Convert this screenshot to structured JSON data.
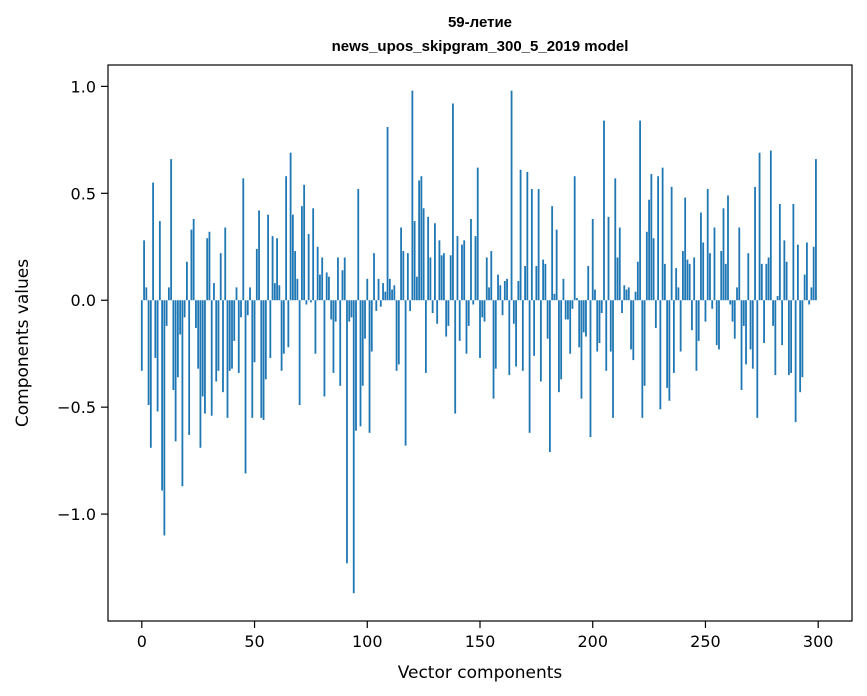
{
  "chart_data": {
    "type": "bar",
    "title": "59-летие",
    "subtitle": "news_upos_skipgram_300_5_2019 model",
    "xlabel": "Vector components",
    "ylabel": "Components values",
    "xlim": [
      -15,
      315
    ],
    "ylim": [
      -1.5,
      1.1
    ],
    "xticks": [
      0,
      50,
      100,
      150,
      200,
      250,
      300
    ],
    "yticks": [
      -1.0,
      -0.5,
      0.0,
      0.5,
      1.0
    ],
    "ytick_labels": [
      "−1.0",
      "−0.5",
      "0.0",
      "0.5",
      "1.0"
    ],
    "xtick_labels": [
      "0",
      "50",
      "100",
      "150",
      "200",
      "250",
      "300"
    ],
    "bar_color": "#1f77b4",
    "grid": false,
    "values": [
      -0.33,
      0.28,
      0.06,
      -0.49,
      -0.69,
      0.55,
      -0.27,
      -0.52,
      0.37,
      -0.89,
      -1.1,
      -0.12,
      0.06,
      0.66,
      -0.42,
      -0.66,
      -0.36,
      -0.16,
      -0.87,
      -0.08,
      0.18,
      -0.63,
      0.33,
      0.38,
      -0.13,
      -0.32,
      -0.69,
      -0.45,
      -0.53,
      0.29,
      0.32,
      -0.54,
      0.08,
      -0.38,
      -0.33,
      0.22,
      -0.43,
      0.34,
      -0.55,
      -0.33,
      -0.32,
      -0.19,
      0.06,
      -0.34,
      -0.08,
      0.57,
      -0.81,
      -0.07,
      0.06,
      -0.55,
      -0.29,
      0.24,
      0.42,
      -0.55,
      -0.56,
      -0.37,
      0.4,
      -0.27,
      0.3,
      0.08,
      0.29,
      0.07,
      -0.33,
      -0.25,
      0.58,
      -0.22,
      0.69,
      0.4,
      0.23,
      0.1,
      -0.49,
      0.44,
      0.54,
      -0.02,
      0.31,
      -0.01,
      0.43,
      -0.25,
      0.25,
      0.12,
      0.2,
      -0.45,
      0.13,
      0.11,
      -0.09,
      -0.34,
      -0.1,
      0.2,
      -0.4,
      0.14,
      0.2,
      -1.23,
      -0.1,
      -0.08,
      -1.37,
      -0.61,
      0.52,
      -0.59,
      -0.4,
      -0.18,
      0.1,
      -0.62,
      -0.24,
      0.22,
      -0.05,
      0.1,
      -0.03,
      0.08,
      0.04,
      0.81,
      0.1,
      0.05,
      0.07,
      -0.33,
      -0.3,
      0.34,
      0.23,
      -0.68,
      0.22,
      -0.05,
      0.98,
      0.37,
      0.11,
      0.56,
      0.58,
      0.43,
      -0.34,
      0.39,
      0.2,
      -0.06,
      0.36,
      -0.11,
      0.28,
      0.21,
      0.22,
      -0.17,
      -0.12,
      0.21,
      0.92,
      -0.53,
      0.3,
      -0.19,
      0.26,
      0.28,
      -0.25,
      -0.12,
      0.38,
      -0.02,
      0.3,
      0.62,
      -0.27,
      -0.08,
      -0.1,
      0.2,
      0.06,
      0.23,
      -0.46,
      -0.32,
      0.12,
      0.07,
      -0.07,
      0.09,
      0.1,
      -0.35,
      0.98,
      -0.11,
      -0.31,
      0.09,
      0.61,
      -0.33,
      0.16,
      0.6,
      -0.62,
      0.52,
      -0.26,
      0.16,
      0.52,
      -0.38,
      0.19,
      0.17,
      -0.18,
      -0.71,
      0.44,
      0.03,
      0.33,
      -0.43,
      -0.37,
      0.1,
      -0.09,
      -0.09,
      -0.25,
      -0.04,
      0.58,
      0.01,
      -0.22,
      -0.46,
      -0.15,
      -0.17,
      0.16,
      -0.64,
      0.38,
      0.05,
      -0.24,
      -0.2,
      -0.06,
      0.84,
      -0.33,
      0.39,
      -0.24,
      -0.55,
      0.57,
      0.2,
      0.34,
      -0.06,
      0.07,
      0.05,
      0.06,
      -0.23,
      -0.28,
      0.04,
      0.18,
      0.84,
      -0.55,
      -0.4,
      0.32,
      0.47,
      0.59,
      0.29,
      -0.13,
      0.58,
      -0.51,
      0.62,
      0.17,
      -0.41,
      -0.47,
      0.53,
      -0.34,
      0.15,
      0.06,
      -0.24,
      0.23,
      0.48,
      0.19,
      0.17,
      -0.14,
      0.2,
      -0.33,
      -0.19,
      0.41,
      0.27,
      -0.1,
      0.52,
      0.22,
      -0.04,
      0.34,
      -0.21,
      -0.23,
      0.23,
      0.43,
      0.17,
      0.49,
      -0.02,
      -0.1,
      -0.18,
      0.06,
      0.34,
      -0.42,
      -0.12,
      -0.3,
      0.22,
      -0.23,
      -0.32,
      0.53,
      -0.55,
      0.69,
      0.17,
      -0.2,
      0.17,
      0.2,
      0.7,
      -0.12,
      -0.35,
      0.02,
      0.45,
      -0.21,
      0.28,
      0.18,
      -0.35,
      -0.34,
      0.45,
      -0.57,
      0.26,
      -0.43,
      -0.36,
      0.12,
      0.27,
      -0.02,
      0.06,
      0.25,
      0.66
    ]
  }
}
